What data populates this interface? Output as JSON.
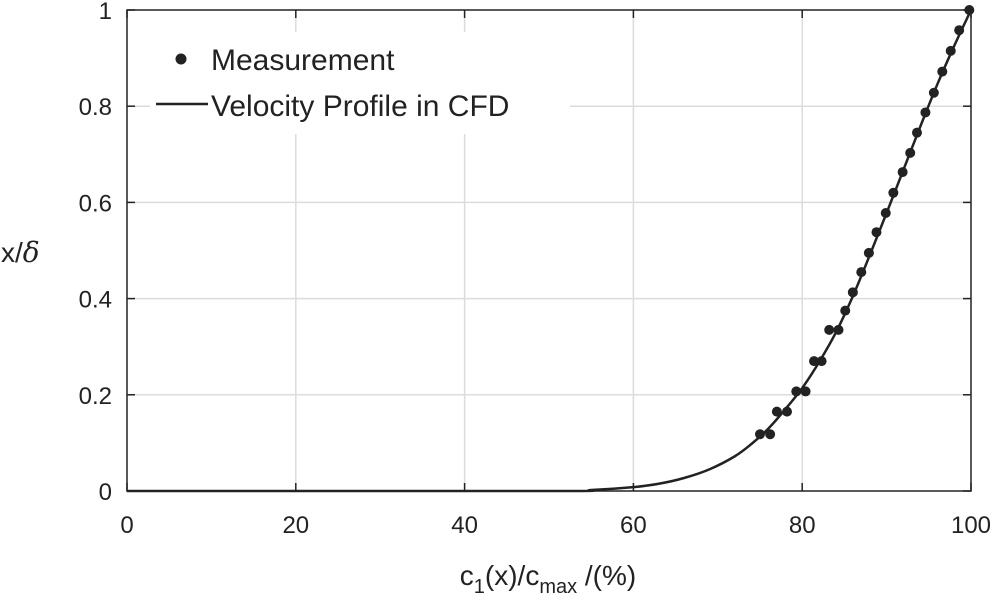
{
  "chart_data": {
    "type": "line",
    "xlim": [
      0,
      100
    ],
    "ylim": [
      0,
      1
    ],
    "x_ticks": [
      0,
      20,
      40,
      60,
      80,
      100
    ],
    "y_ticks": [
      0,
      0.2,
      0.4,
      0.6,
      0.8,
      1
    ],
    "x_tick_labels": [
      "0",
      "20",
      "40",
      "60",
      "80",
      "100"
    ],
    "y_tick_labels": [
      "0",
      "0.2",
      "0.4",
      "0.6",
      "0.8",
      "1"
    ],
    "grid": true,
    "legend_position": "top-left",
    "xlabel": {
      "base": "c",
      "sub1": "1",
      "mid": "(x)/c",
      "sub2": "max",
      "tail": " /(%)"
    },
    "ylabel": {
      "prefix": "x/",
      "symbol": "δ"
    },
    "series": [
      {
        "name": "Measurement",
        "style": "markers",
        "color": "#222222",
        "points": [
          [
            75.0,
            0.118
          ],
          [
            76.2,
            0.118
          ],
          [
            77.0,
            0.165
          ],
          [
            78.2,
            0.165
          ],
          [
            79.3,
            0.207
          ],
          [
            80.4,
            0.207
          ],
          [
            81.4,
            0.27
          ],
          [
            82.3,
            0.27
          ],
          [
            83.2,
            0.335
          ],
          [
            84.3,
            0.335
          ],
          [
            85.1,
            0.375
          ],
          [
            86.0,
            0.413
          ],
          [
            87.0,
            0.455
          ],
          [
            87.9,
            0.495
          ],
          [
            88.8,
            0.538
          ],
          [
            89.9,
            0.578
          ],
          [
            90.8,
            0.62
          ],
          [
            91.9,
            0.663
          ],
          [
            92.8,
            0.703
          ],
          [
            93.6,
            0.745
          ],
          [
            94.6,
            0.787
          ],
          [
            95.6,
            0.828
          ],
          [
            96.6,
            0.872
          ],
          [
            97.6,
            0.915
          ],
          [
            98.6,
            0.958
          ],
          [
            99.8,
            1.0
          ]
        ]
      },
      {
        "name": "Velocity Profile in CFD",
        "style": "line",
        "color": "#222222",
        "points": [
          [
            0,
            0.0
          ],
          [
            50,
            0.0
          ],
          [
            55,
            0.002
          ],
          [
            60,
            0.008
          ],
          [
            63,
            0.015
          ],
          [
            66,
            0.027
          ],
          [
            69,
            0.045
          ],
          [
            72,
            0.072
          ],
          [
            74,
            0.098
          ],
          [
            76,
            0.13
          ],
          [
            78,
            0.17
          ],
          [
            80,
            0.214
          ],
          [
            82,
            0.268
          ],
          [
            84,
            0.33
          ],
          [
            86,
            0.405
          ],
          [
            88,
            0.49
          ],
          [
            90,
            0.578
          ],
          [
            92,
            0.668
          ],
          [
            94,
            0.758
          ],
          [
            96,
            0.845
          ],
          [
            98,
            0.925
          ],
          [
            100,
            1.0
          ]
        ]
      }
    ]
  }
}
